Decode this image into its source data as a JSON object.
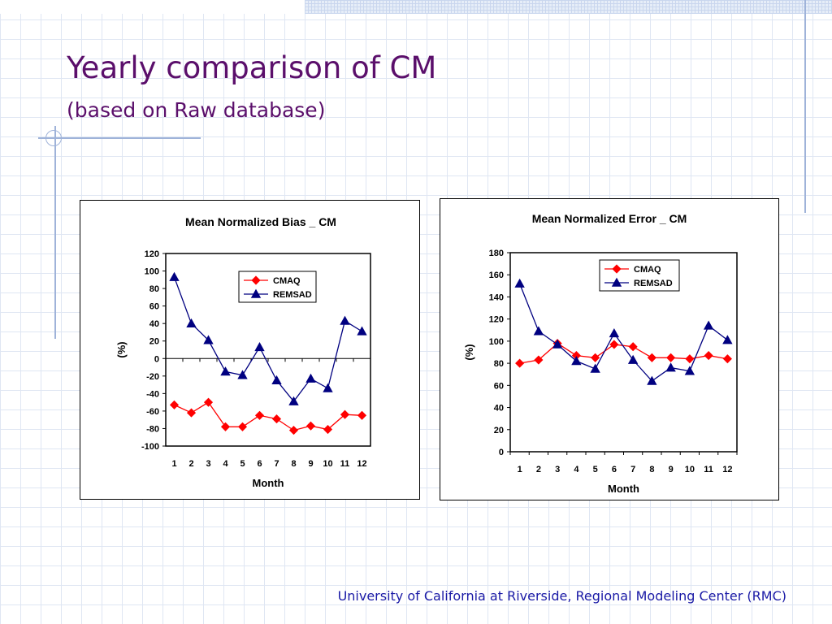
{
  "slide": {
    "title": "Yearly comparison of CM",
    "subtitle": "(based on Raw database)",
    "footer": "University of California at Riverside, Regional Modeling Center (RMC)"
  },
  "colors": {
    "title": "#5b0f6b",
    "footer": "#1a1aa6",
    "cmaq": "#ff0000",
    "remsad": "#000080"
  },
  "chart_data": [
    {
      "type": "line",
      "title": "Mean Normalized Bias _ CM",
      "xlabel": "Month",
      "ylabel": "(%)",
      "x": [
        "1",
        "2",
        "3",
        "4",
        "5",
        "6",
        "7",
        "8",
        "9",
        "10",
        "11",
        "12"
      ],
      "ylim": [
        -100,
        120
      ],
      "yticks": [
        -100,
        -80,
        -60,
        -40,
        -20,
        0,
        20,
        40,
        60,
        80,
        100,
        120
      ],
      "grid": false,
      "legend": "top-right",
      "series": [
        {
          "name": "CMAQ",
          "marker": "diamond",
          "color": "#ff0000",
          "values": [
            -53,
            -62,
            -50,
            -78,
            -78,
            -65,
            -69,
            -82,
            -77,
            -81,
            -64,
            -65
          ]
        },
        {
          "name": "REMSAD",
          "marker": "triangle",
          "color": "#000080",
          "values": [
            93,
            40,
            21,
            -15,
            -19,
            13,
            -25,
            -49,
            -23,
            -34,
            43,
            31
          ]
        }
      ]
    },
    {
      "type": "line",
      "title": "Mean Normalized Error _ CM",
      "xlabel": "Month",
      "ylabel": "(%)",
      "x": [
        "1",
        "2",
        "3",
        "4",
        "5",
        "6",
        "7",
        "8",
        "9",
        "10",
        "11",
        "12"
      ],
      "ylim": [
        0,
        180
      ],
      "yticks": [
        0,
        20,
        40,
        60,
        80,
        100,
        120,
        140,
        160,
        180
      ],
      "grid": false,
      "legend": "top-right",
      "series": [
        {
          "name": "CMAQ",
          "marker": "diamond",
          "color": "#ff0000",
          "values": [
            80,
            83,
            98,
            87,
            85,
            97,
            95,
            85,
            85,
            84,
            87,
            84
          ]
        },
        {
          "name": "REMSAD",
          "marker": "triangle",
          "color": "#000080",
          "values": [
            152,
            109,
            97,
            82,
            75,
            107,
            83,
            64,
            76,
            73,
            114,
            101
          ]
        }
      ]
    }
  ]
}
